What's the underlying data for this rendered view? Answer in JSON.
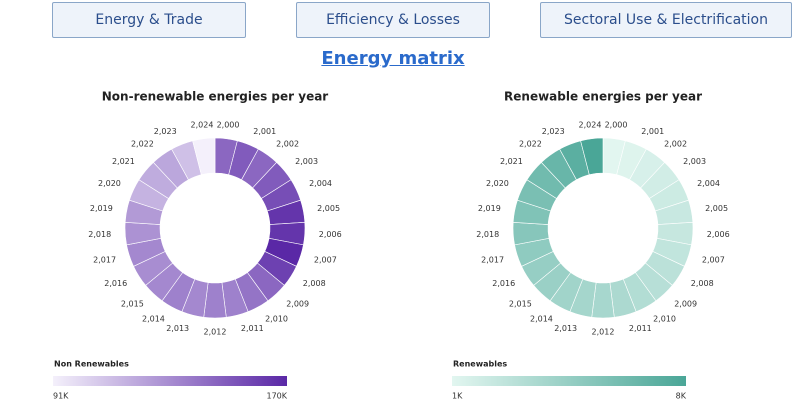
{
  "nav": [
    "Energy & Trade",
    "Efficiency & Losses",
    "Sectoral Use & Electrification"
  ],
  "heading": "Energy matrix",
  "chart_data": [
    {
      "type": "pie",
      "title": "Non-renewable energies per year",
      "categories": [
        "2,000",
        "2,001",
        "2,002",
        "2,003",
        "2,004",
        "2,005",
        "2,006",
        "2,007",
        "2,008",
        "2,009",
        "2,010",
        "2,011",
        "2,012",
        "2,013",
        "2,014",
        "2,015",
        "2,016",
        "2,017",
        "2,018",
        "2,019",
        "2,020",
        "2,021",
        "2,022",
        "2,023",
        "2,024"
      ],
      "values": [
        145000,
        150000,
        145000,
        150000,
        155000,
        165000,
        165000,
        170000,
        160000,
        145000,
        140000,
        135000,
        135000,
        132000,
        135000,
        132000,
        130000,
        132000,
        128000,
        125000,
        115000,
        118000,
        120000,
        110000,
        91000
      ],
      "color_scale": {
        "title": "Non Renewables",
        "colors": [
          "#f4f0fb",
          "#5a28a6"
        ],
        "min": {
          "value": 91000,
          "label": "91K"
        },
        "max": {
          "value": 170000,
          "label": "170K"
        }
      }
    },
    {
      "type": "pie",
      "title": "Renewable energies per year",
      "categories": [
        "2,000",
        "2,001",
        "2,002",
        "2,003",
        "2,004",
        "2,005",
        "2,006",
        "2,007",
        "2,008",
        "2,009",
        "2,010",
        "2,011",
        "2,012",
        "2,013",
        "2,014",
        "2,015",
        "2,016",
        "2,017",
        "2,018",
        "2,019",
        "2,020",
        "2,021",
        "2,022",
        "2,023",
        "2,024"
      ],
      "values": [
        1000,
        1200,
        1500,
        1800,
        2000,
        2200,
        2300,
        2500,
        2800,
        3000,
        3200,
        3500,
        3700,
        3800,
        4000,
        4300,
        4500,
        4800,
        5200,
        5500,
        5800,
        6200,
        6600,
        7200,
        8000
      ],
      "color_scale": {
        "title": "Renewables",
        "colors": [
          "#e2f6f0",
          "#4aa697"
        ],
        "min": {
          "value": 1000,
          "label": "1K"
        },
        "max": {
          "value": 8000,
          "label": "8K"
        }
      }
    }
  ]
}
